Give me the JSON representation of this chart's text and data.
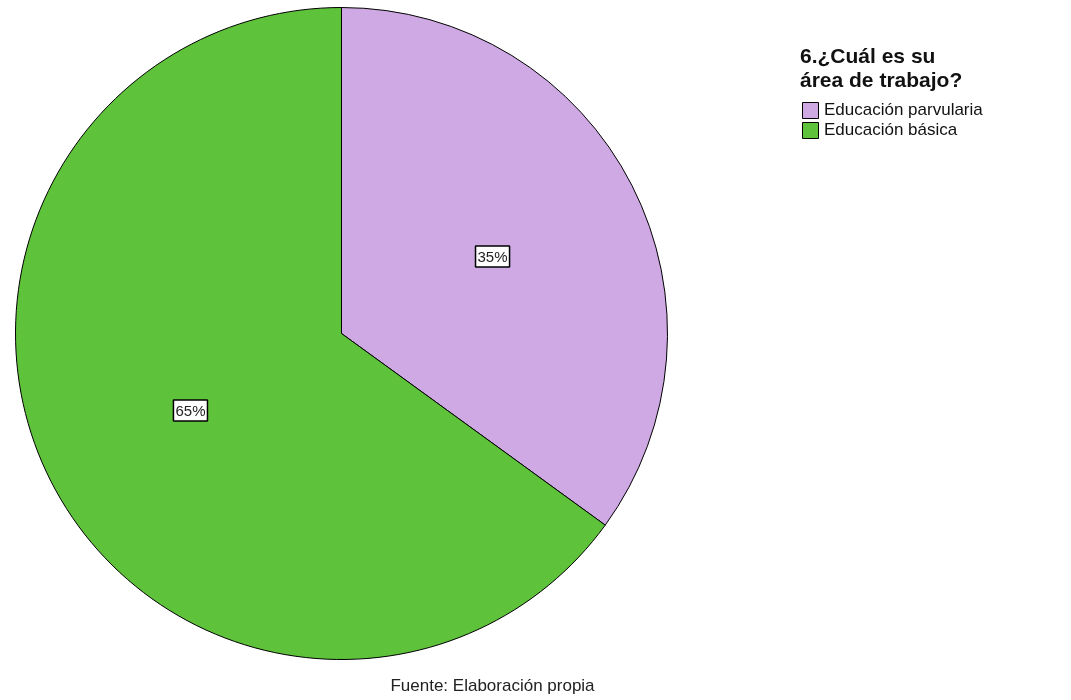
{
  "chart_data": {
    "type": "pie",
    "legend_title": "6.¿Cuál es su área de trabajo?",
    "categories": [
      "Educación parvularia",
      "Educación básica"
    ],
    "values": [
      35,
      65
    ],
    "colors": [
      "#cfa9e4",
      "#5ec23a"
    ],
    "value_labels": [
      "35%",
      "65%"
    ],
    "legend": "top right",
    "annotations": [
      "Fuente: Elaboración propia"
    ]
  }
}
